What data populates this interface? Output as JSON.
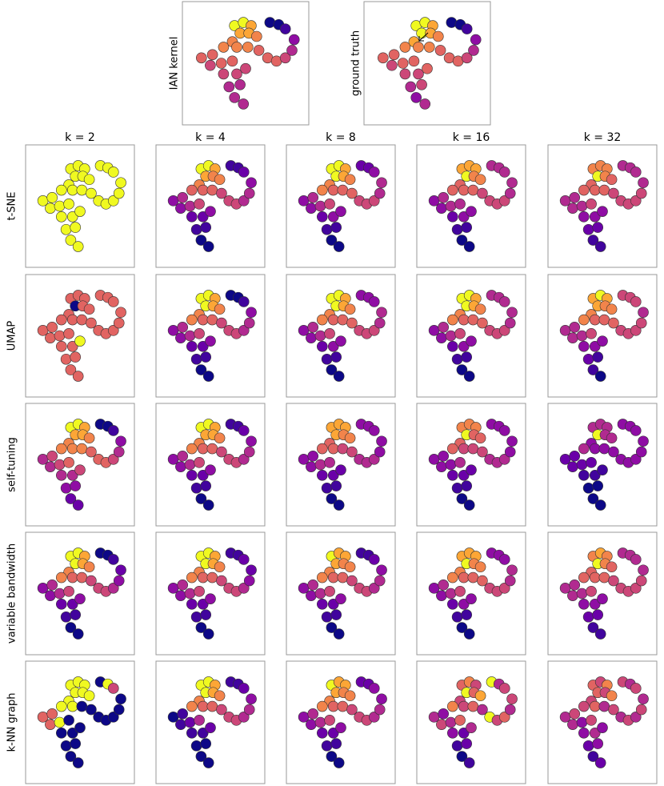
{
  "points": {
    "x": [
      40,
      48,
      55,
      45,
      53,
      60,
      38,
      30,
      42,
      52,
      62,
      70,
      78,
      86,
      92,
      94,
      72,
      80,
      86,
      10,
      20,
      18,
      28,
      38,
      30,
      42,
      50,
      35,
      45,
      40,
      48
    ],
    "y": [
      85,
      88,
      85,
      78,
      78,
      75,
      70,
      65,
      65,
      65,
      62,
      55,
      52,
      55,
      62,
      72,
      88,
      86,
      82,
      55,
      58,
      48,
      50,
      52,
      40,
      40,
      45,
      28,
      30,
      18,
      12
    ]
  },
  "xlim": [
    0,
    100
  ],
  "ylim": [
    0,
    100
  ],
  "clim": [
    0,
    9
  ],
  "palette": [
    "#0d0887",
    "#41049d",
    "#6a00a8",
    "#8f0da4",
    "#b12a90",
    "#cc4778",
    "#e16462",
    "#f2844b",
    "#fca636",
    "#f0f921"
  ],
  "top": [
    {
      "label": "IAN kernel",
      "values": [
        9,
        9,
        8,
        8,
        8,
        7,
        7,
        7,
        7,
        7,
        6,
        6,
        6,
        5,
        4,
        3,
        0,
        0,
        1,
        6,
        6,
        5,
        6,
        6,
        5,
        5,
        5,
        4,
        4,
        4,
        4
      ]
    },
    {
      "label": "ground truth",
      "values": [
        9,
        9,
        8,
        9,
        8,
        7,
        8,
        7,
        7,
        7,
        6,
        6,
        6,
        5,
        4,
        3,
        0,
        0,
        1,
        6,
        6,
        5,
        6,
        6,
        5,
        5,
        6,
        4,
        5,
        3,
        4
      ]
    }
  ],
  "columns": [
    "k = 2",
    "k = 4",
    "k = 8",
    "k = 16",
    "k = 32"
  ],
  "rows": [
    {
      "label": "t-SNE",
      "panels": [
        [
          9,
          9,
          9,
          9,
          9,
          9,
          9,
          9,
          9,
          9,
          9,
          9,
          9,
          9,
          9,
          9,
          9,
          9,
          9,
          9,
          9,
          9,
          9,
          9,
          9,
          9,
          9,
          9,
          9,
          9,
          9
        ],
        [
          9,
          9,
          8,
          8,
          7,
          7,
          7,
          6,
          6,
          6,
          5,
          5,
          5,
          4,
          4,
          3,
          1,
          1,
          2,
          3,
          4,
          3,
          4,
          5,
          2,
          2,
          3,
          1,
          1,
          0,
          0
        ],
        [
          9,
          9,
          8,
          9,
          8,
          7,
          7,
          7,
          6,
          6,
          6,
          5,
          5,
          5,
          4,
          4,
          2,
          2,
          3,
          3,
          4,
          3,
          4,
          5,
          2,
          3,
          3,
          1,
          1,
          0,
          0
        ],
        [
          8,
          8,
          8,
          9,
          7,
          7,
          6,
          6,
          6,
          6,
          5,
          5,
          5,
          5,
          4,
          4,
          4,
          4,
          4,
          3,
          4,
          3,
          4,
          4,
          2,
          3,
          3,
          1,
          1,
          0,
          0
        ],
        [
          7,
          7,
          7,
          9,
          7,
          6,
          6,
          6,
          6,
          6,
          5,
          5,
          5,
          5,
          5,
          4,
          4,
          4,
          4,
          4,
          4,
          4,
          4,
          5,
          3,
          3,
          3,
          2,
          2,
          1,
          1
        ]
      ]
    },
    {
      "label": "UMAP",
      "panels": [
        [
          6,
          6,
          6,
          0,
          6,
          6,
          6,
          6,
          6,
          6,
          6,
          6,
          6,
          6,
          6,
          6,
          6,
          6,
          6,
          6,
          6,
          6,
          6,
          6,
          6,
          6,
          9,
          6,
          6,
          6,
          6
        ],
        [
          9,
          9,
          8,
          9,
          8,
          7,
          7,
          7,
          6,
          6,
          5,
          5,
          5,
          4,
          4,
          3,
          0,
          0,
          1,
          3,
          4,
          3,
          4,
          5,
          2,
          2,
          3,
          1,
          1,
          0,
          0
        ],
        [
          9,
          9,
          8,
          9,
          8,
          7,
          7,
          7,
          6,
          6,
          6,
          5,
          5,
          5,
          4,
          4,
          3,
          3,
          3,
          3,
          4,
          3,
          4,
          5,
          2,
          3,
          3,
          1,
          1,
          0,
          0
        ],
        [
          9,
          9,
          8,
          9,
          8,
          7,
          7,
          7,
          6,
          6,
          6,
          5,
          5,
          5,
          4,
          4,
          4,
          4,
          4,
          3,
          4,
          3,
          4,
          5,
          2,
          3,
          3,
          1,
          1,
          0,
          0
        ],
        [
          8,
          9,
          8,
          8,
          7,
          7,
          7,
          7,
          6,
          6,
          6,
          5,
          5,
          5,
          5,
          4,
          5,
          5,
          5,
          4,
          4,
          4,
          4,
          5,
          3,
          3,
          3,
          2,
          1,
          1,
          0
        ]
      ]
    },
    {
      "label": "self-tuning",
      "panels": [
        [
          9,
          9,
          8,
          8,
          8,
          7,
          7,
          7,
          7,
          7,
          6,
          6,
          6,
          5,
          4,
          3,
          0,
          0,
          1,
          4,
          5,
          4,
          5,
          6,
          4,
          4,
          5,
          3,
          3,
          2,
          2
        ],
        [
          9,
          9,
          8,
          8,
          8,
          7,
          7,
          7,
          6,
          6,
          5,
          5,
          5,
          4,
          4,
          3,
          1,
          1,
          2,
          3,
          4,
          3,
          4,
          5,
          2,
          2,
          3,
          1,
          1,
          0,
          0
        ],
        [
          8,
          8,
          8,
          8,
          7,
          7,
          6,
          6,
          6,
          5,
          5,
          4,
          4,
          4,
          3,
          3,
          3,
          3,
          3,
          3,
          3,
          3,
          4,
          4,
          2,
          2,
          2,
          1,
          1,
          0,
          0
        ],
        [
          7,
          7,
          7,
          9,
          6,
          6,
          6,
          6,
          5,
          5,
          5,
          4,
          4,
          4,
          3,
          3,
          3,
          3,
          3,
          3,
          3,
          3,
          3,
          4,
          2,
          2,
          2,
          1,
          1,
          0,
          0
        ],
        [
          4,
          4,
          4,
          9,
          4,
          4,
          3,
          4,
          3,
          3,
          3,
          3,
          3,
          3,
          3,
          3,
          3,
          3,
          3,
          2,
          2,
          2,
          2,
          2,
          1,
          1,
          1,
          0,
          0,
          0,
          0
        ]
      ]
    },
    {
      "label": "variable bandwidth",
      "panels": [
        [
          9,
          9,
          8,
          9,
          8,
          7,
          7,
          7,
          6,
          6,
          5,
          5,
          5,
          4,
          3,
          2,
          0,
          0,
          1,
          3,
          4,
          3,
          4,
          5,
          2,
          2,
          3,
          1,
          1,
          0,
          0
        ],
        [
          9,
          9,
          8,
          9,
          8,
          7,
          7,
          7,
          6,
          6,
          5,
          5,
          5,
          4,
          3,
          2,
          1,
          1,
          2,
          3,
          4,
          3,
          4,
          5,
          2,
          2,
          3,
          1,
          1,
          0,
          0
        ],
        [
          9,
          8,
          8,
          8,
          7,
          7,
          7,
          7,
          6,
          6,
          5,
          5,
          5,
          4,
          4,
          3,
          1,
          1,
          2,
          3,
          4,
          3,
          4,
          5,
          2,
          2,
          3,
          1,
          1,
          0,
          0
        ],
        [
          8,
          8,
          8,
          9,
          7,
          7,
          7,
          7,
          6,
          6,
          6,
          5,
          5,
          5,
          4,
          4,
          3,
          3,
          3,
          3,
          4,
          3,
          4,
          5,
          2,
          3,
          3,
          1,
          1,
          0,
          0
        ],
        [
          7,
          8,
          7,
          9,
          7,
          6,
          6,
          6,
          6,
          6,
          5,
          5,
          5,
          5,
          5,
          4,
          4,
          4,
          4,
          4,
          4,
          4,
          4,
          5,
          3,
          3,
          3,
          2,
          2,
          1,
          1
        ]
      ]
    },
    {
      "label": "k-NN graph",
      "panels": [
        [
          9,
          9,
          9,
          9,
          9,
          9,
          9,
          9,
          9,
          0,
          0,
          0,
          0,
          0,
          0,
          0,
          0,
          9,
          5,
          6,
          6,
          6,
          9,
          0,
          0,
          0,
          0,
          0,
          0,
          0,
          0
        ],
        [
          9,
          9,
          8,
          9,
          8,
          7,
          7,
          7,
          6,
          6,
          5,
          5,
          5,
          4,
          4,
          3,
          1,
          1,
          2,
          0,
          1,
          1,
          2,
          4,
          1,
          1,
          2,
          0,
          0,
          0,
          0
        ],
        [
          9,
          8,
          8,
          8,
          7,
          7,
          7,
          7,
          6,
          6,
          5,
          5,
          5,
          4,
          4,
          3,
          2,
          2,
          3,
          3,
          4,
          3,
          4,
          5,
          2,
          2,
          3,
          1,
          1,
          0,
          0
        ],
        [
          6,
          7,
          5,
          9,
          6,
          8,
          5,
          7,
          5,
          6,
          4,
          9,
          5,
          6,
          4,
          5,
          9,
          4,
          5,
          4,
          3,
          5,
          4,
          6,
          3,
          2,
          4,
          1,
          2,
          0,
          1
        ],
        [
          6,
          5,
          7,
          6,
          5,
          7,
          5,
          5,
          6,
          4,
          5,
          4,
          5,
          4,
          5,
          4,
          5,
          4,
          5,
          4,
          5,
          4,
          3,
          5,
          3,
          4,
          3,
          2,
          3,
          1,
          2
        ]
      ]
    }
  ]
}
